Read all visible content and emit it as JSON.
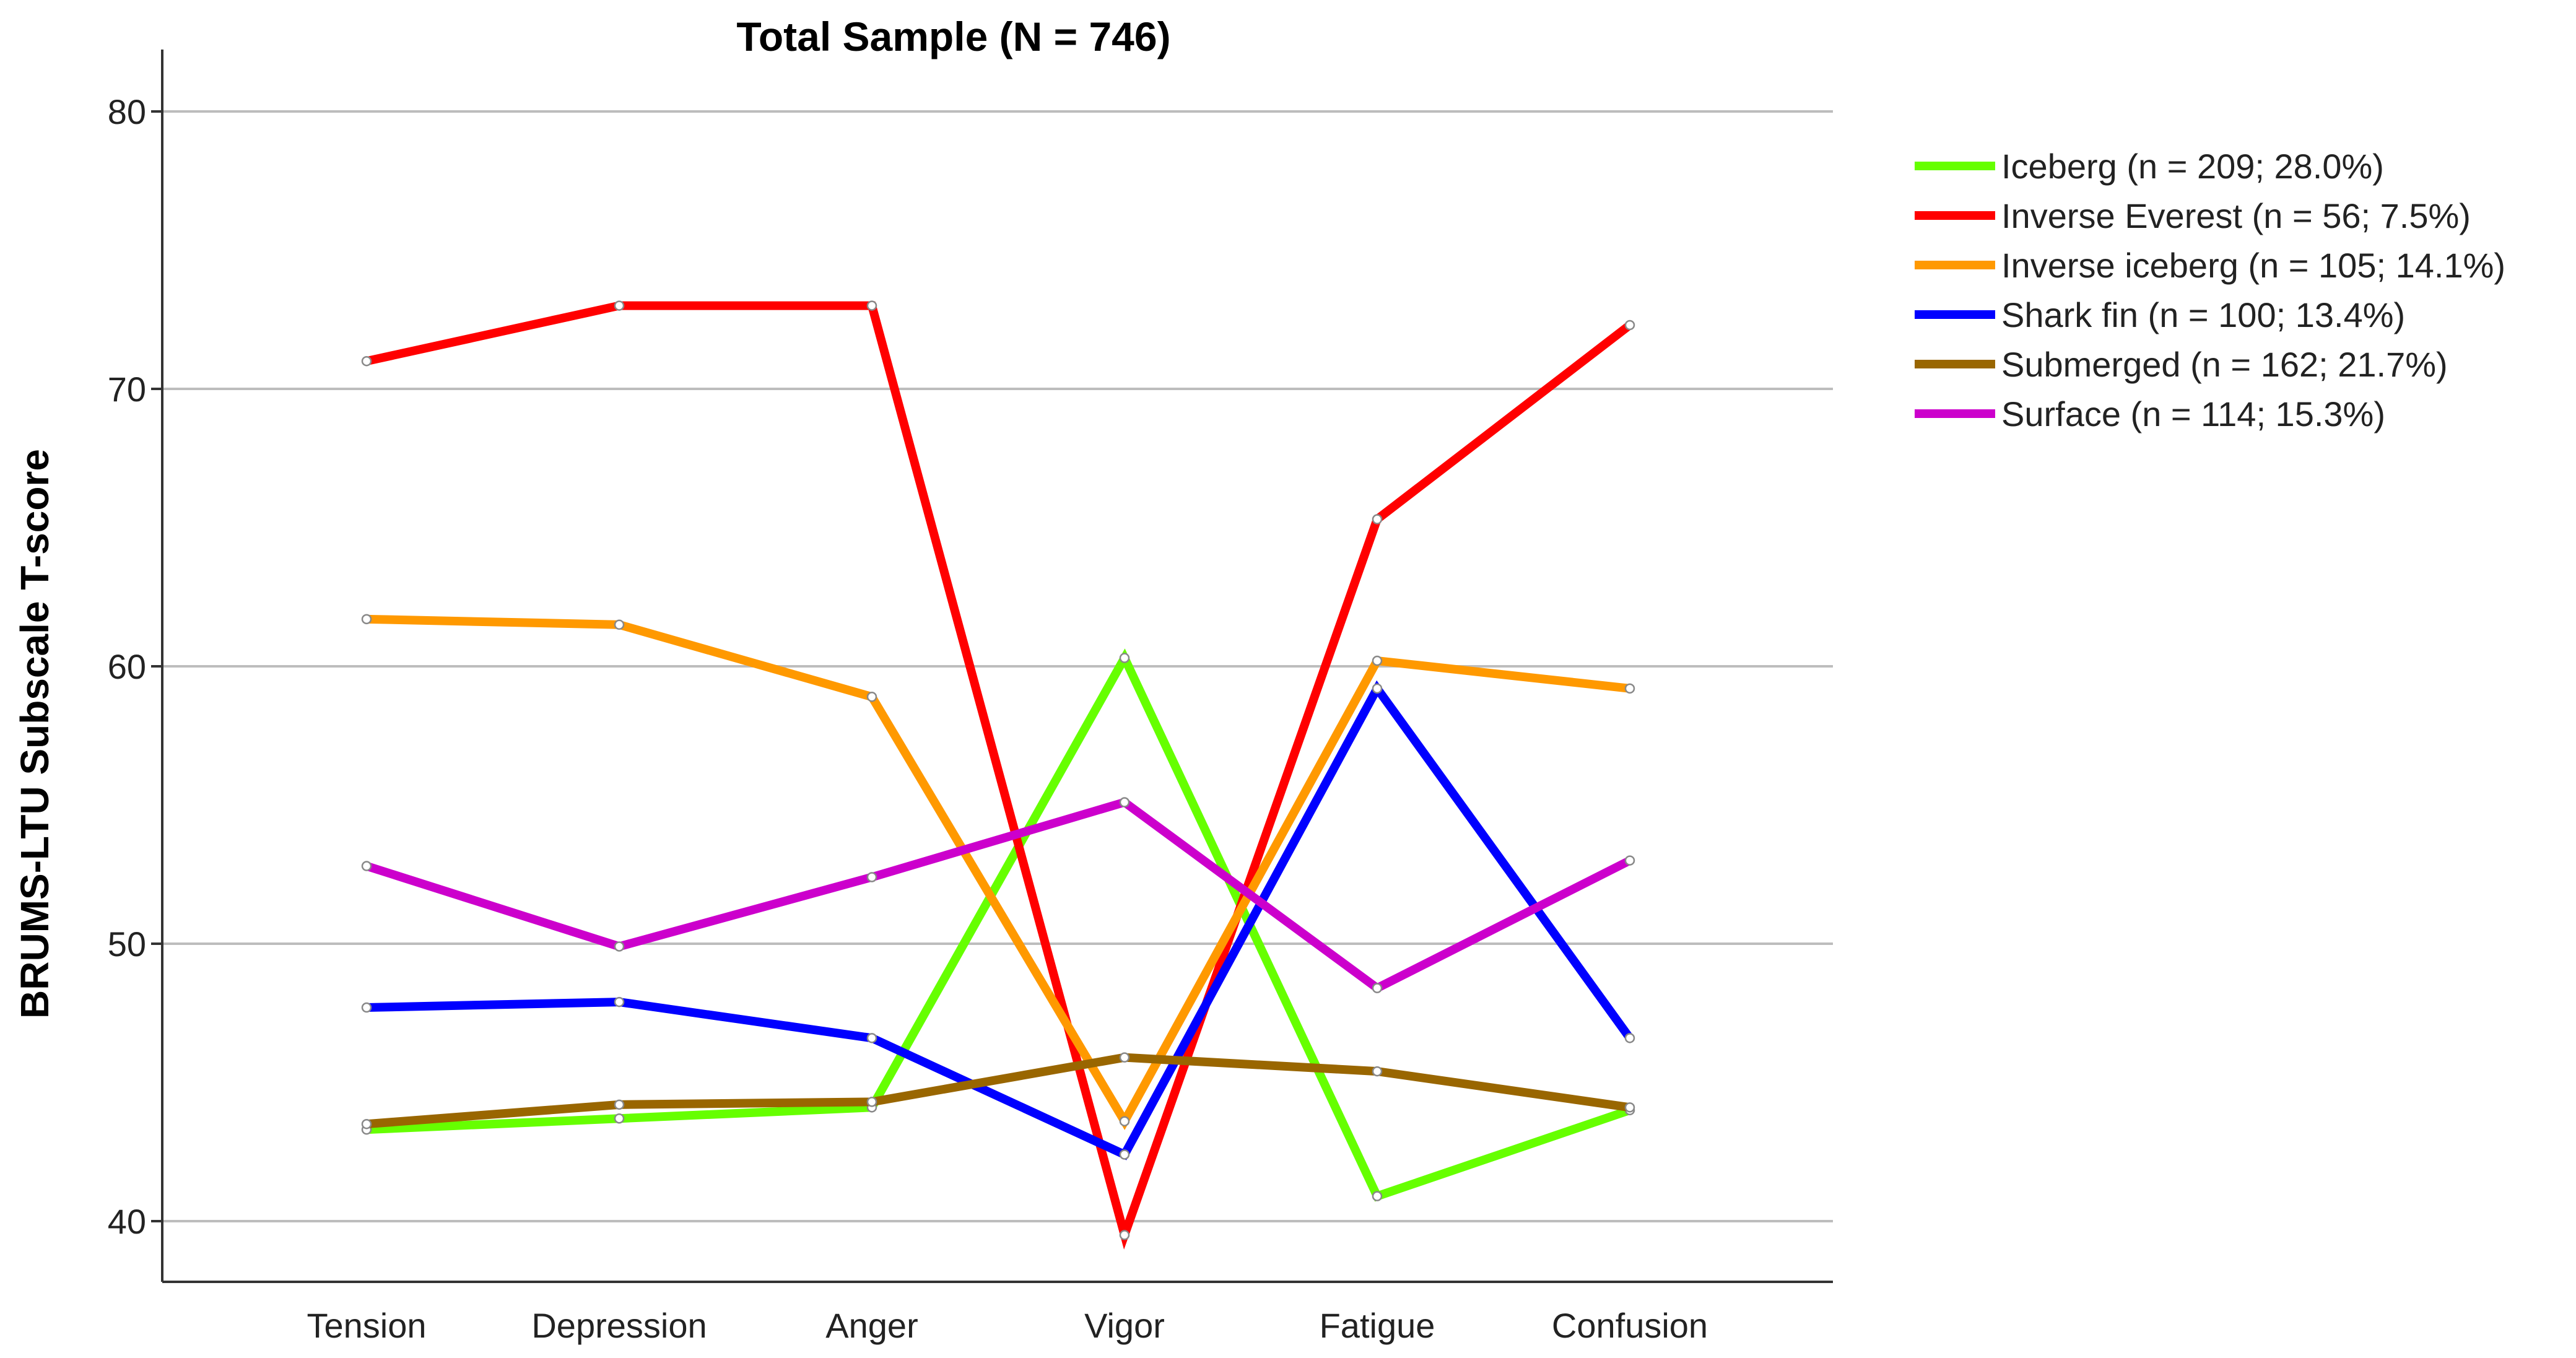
{
  "chart_data": {
    "type": "line",
    "title": "Total Sample (N = 746)",
    "xlabel": "",
    "ylabel": "BRUMS-LTU Subscale T-score",
    "categories": [
      "Tension",
      "Depression",
      "Anger",
      "Vigor",
      "Fatigue",
      "Confusion"
    ],
    "ylim": [
      37.5,
      82.5
    ],
    "yticks": [
      40,
      50,
      60,
      70,
      80
    ],
    "grid": true,
    "legend_position": "right",
    "series": [
      {
        "name": "Iceberg (n = 209; 28.0%)",
        "color": "#66ff00",
        "values": [
          43.3,
          43.7,
          44.1,
          60.3,
          40.9,
          44.0
        ]
      },
      {
        "name": "Inverse Everest (n = 56; 7.5%)",
        "color": "#ff0000",
        "values": [
          71.0,
          73.0,
          73.0,
          39.5,
          65.3,
          72.3
        ]
      },
      {
        "name": "Inverse iceberg (n = 105; 14.1%)",
        "color": "#ff9900",
        "values": [
          61.7,
          61.5,
          58.9,
          43.6,
          60.2,
          59.2
        ]
      },
      {
        "name": "Shark fin (n = 100; 13.4%)",
        "color": "#0000ff",
        "values": [
          47.7,
          47.9,
          46.6,
          42.4,
          59.2,
          46.6
        ]
      },
      {
        "name": "Submerged (n = 162; 21.7%)",
        "color": "#996600",
        "values": [
          43.5,
          44.2,
          44.3,
          45.9,
          45.4,
          44.1
        ]
      },
      {
        "name": "Surface (n = 114; 15.3%)",
        "color": "#cc00cc",
        "values": [
          52.8,
          49.9,
          52.4,
          55.1,
          48.4,
          53.0
        ]
      }
    ]
  }
}
